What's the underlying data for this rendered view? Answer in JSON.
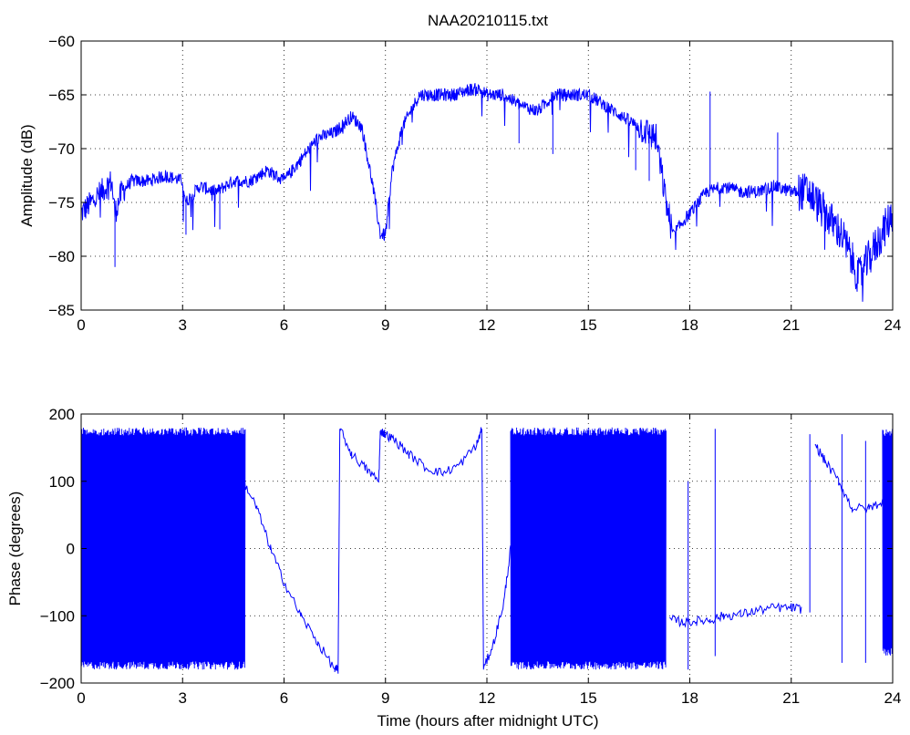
{
  "figure": {
    "title": "NAA20210115.txt",
    "xlabel": "Time (hours after midnight UTC)"
  },
  "chart_data": [
    {
      "type": "line",
      "title": "NAA20210115.txt",
      "xlabel": "",
      "ylabel": "Amplitude (dB)",
      "xlim": [
        0,
        24
      ],
      "ylim": [
        -85,
        -60
      ],
      "xticks": [
        0,
        3,
        6,
        9,
        12,
        15,
        18,
        21,
        24
      ],
      "yticks": [
        -85,
        -80,
        -75,
        -70,
        -65,
        -60
      ],
      "grid": true,
      "color": "#0000ff",
      "series": [
        {
          "x": [
            0,
            0.3,
            0.6,
            0.9,
            1.0,
            1.2,
            1.5,
            2.0,
            2.5,
            3.0,
            3.1,
            3.5,
            4.0,
            4.5,
            5.0,
            5.5,
            6.0,
            6.5,
            7.0,
            7.5,
            8.0,
            8.3,
            8.6,
            8.85,
            9.0,
            9.2,
            9.5,
            10.0,
            10.5,
            11.0,
            11.5,
            11.8,
            12.0,
            12.5,
            13.0,
            13.5,
            14.0,
            14.5,
            15.0,
            15.5,
            16.0,
            16.5,
            17.0,
            17.3,
            17.5,
            18.0,
            18.5,
            19.0,
            19.5,
            20.0,
            20.5,
            21.0,
            21.5,
            22.0,
            22.5,
            23.0,
            23.5,
            24.0
          ],
          "y": [
            -76,
            -75,
            -74,
            -73,
            -76,
            -74,
            -73,
            -73,
            -72.5,
            -73,
            -75,
            -73.5,
            -74,
            -73,
            -73,
            -72,
            -73,
            -71,
            -69,
            -68.5,
            -67,
            -68,
            -73,
            -78,
            -78,
            -72,
            -68,
            -65,
            -65,
            -65,
            -64.5,
            -64.5,
            -65,
            -65,
            -66,
            -66.5,
            -65,
            -65,
            -65,
            -66,
            -67,
            -68,
            -69,
            -75,
            -78,
            -76,
            -74,
            -73.5,
            -74,
            -74,
            -73.5,
            -74,
            -74,
            -76,
            -78,
            -82,
            -79,
            -76
          ]
        }
      ]
    },
    {
      "type": "line",
      "title": "",
      "xlabel": "Time (hours after midnight UTC)",
      "ylabel": "Phase (degrees)",
      "xlim": [
        0,
        24
      ],
      "ylim": [
        -200,
        200
      ],
      "xticks": [
        0,
        3,
        6,
        9,
        12,
        15,
        18,
        21,
        24
      ],
      "yticks": [
        -200,
        -100,
        0,
        100,
        200
      ],
      "grid": true,
      "color": "#0000ff",
      "series": [
        {
          "x": [
            4.8,
            5.2,
            5.6,
            6.0,
            6.5,
            7.0,
            7.5,
            7.6,
            7.65,
            8.0,
            8.4,
            8.8,
            8.85,
            9.0,
            9.3,
            9.7,
            10.2,
            10.7,
            11.2,
            11.7,
            11.85,
            11.9,
            12.2,
            12.5,
            12.7
          ],
          "y": [
            100,
            60,
            0,
            -50,
            -100,
            -140,
            -180,
            -180,
            178,
            140,
            120,
            100,
            175,
            170,
            160,
            140,
            120,
            112,
            125,
            155,
            178,
            -180,
            -140,
            -80,
            0
          ]
        },
        {
          "x": [
            17.4,
            17.8,
            18.2,
            18.6,
            19.0,
            19.5,
            20.0,
            20.5,
            21.0,
            21.3
          ],
          "y": [
            -105,
            -110,
            -108,
            -106,
            -100,
            -98,
            -92,
            -88,
            -88,
            -90
          ]
        },
        {
          "x": [
            21.7,
            22.0,
            22.4,
            22.8,
            23.3,
            23.7
          ],
          "y": [
            155,
            130,
            100,
            60,
            60,
            70
          ]
        }
      ],
      "noise_bands": [
        {
          "x": [
            0.0,
            4.85
          ],
          "ylim": [
            -180,
            180
          ]
        },
        {
          "x": [
            12.7,
            17.3
          ],
          "ylim": [
            -180,
            180
          ]
        },
        {
          "x": [
            23.7,
            24.0
          ],
          "ylim": [
            -160,
            178
          ]
        }
      ]
    }
  ]
}
